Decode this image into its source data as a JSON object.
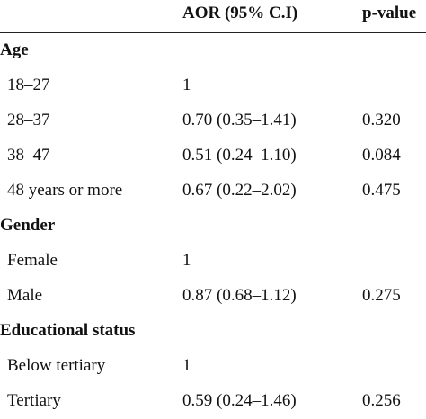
{
  "header": {
    "col_label": "",
    "col_aor": "AOR (95% C.I)",
    "col_p": "p-value"
  },
  "groups": [
    {
      "label": "Age",
      "rows": [
        {
          "label": "18–27",
          "aor": "1",
          "p": ""
        },
        {
          "label": "28–37",
          "aor": "0.70 (0.35–1.41)",
          "p": "0.320"
        },
        {
          "label": "38–47",
          "aor": "0.51 (0.24–1.10)",
          "p": "0.084"
        },
        {
          "label": "48 years or more",
          "aor": "0.67 (0.22–2.02)",
          "p": "0.475"
        }
      ]
    },
    {
      "label": "Gender",
      "rows": [
        {
          "label": "Female",
          "aor": "1",
          "p": ""
        },
        {
          "label": "Male",
          "aor": "0.87 (0.68–1.12)",
          "p": "0.275"
        }
      ]
    },
    {
      "label": "Educational status",
      "rows": [
        {
          "label": "Below tertiary",
          "aor": "1",
          "p": ""
        },
        {
          "label": "Tertiary",
          "aor": "0.59 (0.24–1.46)",
          "p": "0.256"
        }
      ]
    }
  ]
}
